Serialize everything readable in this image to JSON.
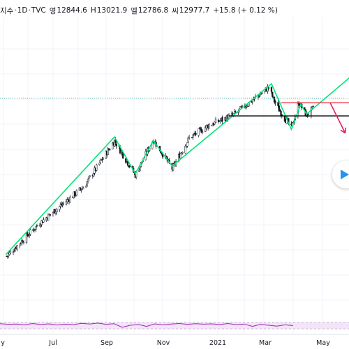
{
  "header": {
    "symbol": "지수",
    "sep1": "·",
    "interval": "1D",
    "sep2": "·",
    "source": "TVC",
    "open_label": "영",
    "open_value": "12844.6",
    "high_label": "H",
    "high_value": "13021.9",
    "low_label": "엘",
    "low_value": "12786.8",
    "close_label": "씨",
    "close_value": "12977.7",
    "change": "+15.8 (+ 0.12 %)"
  },
  "colors": {
    "up_candle": "#131722",
    "down_candle": "#131722",
    "zigzag": "#00e676",
    "resistance": "#f23645",
    "support": "#000000",
    "arrow": "#e91e63",
    "price_line": "#26a69a",
    "rsi_line": "#9c27b0",
    "rsi_band": "#f3e5f5",
    "play": "#2196f3"
  },
  "icons": {
    "play": "play-icon"
  },
  "chart_data": {
    "type": "candlestick",
    "x_tick_labels": [
      "y",
      "Jul",
      "Sep",
      "Nov",
      "2021",
      "Mar",
      "May"
    ],
    "current_price": 12977.7,
    "ylim": [
      7000,
      15200
    ],
    "grid": true,
    "price_path": [
      [
        "2020-05-10",
        7300
      ],
      [
        "2020-06-15",
        8650
      ],
      [
        "2020-08-01",
        10100
      ],
      [
        "2020-09-02",
        11900
      ],
      [
        "2020-09-10",
        11400
      ],
      [
        "2020-09-24",
        10550
      ],
      [
        "2020-10-13",
        11950
      ],
      [
        "2020-11-02",
        10800
      ],
      [
        "2020-11-20",
        12000
      ],
      [
        "2020-12-10",
        12500
      ],
      [
        "2021-01-05",
        12900
      ],
      [
        "2021-02-12",
        14000
      ],
      [
        "2021-02-20",
        13300
      ],
      [
        "2021-03-08",
        12400
      ],
      [
        "2021-03-16",
        13400
      ],
      [
        "2021-03-24",
        12900
      ],
      [
        "2021-04-01",
        13200
      ]
    ],
    "zigzag": [
      [
        "2020-05-10",
        7400
      ],
      [
        "2020-09-02",
        12050
      ],
      [
        "2020-09-24",
        10600
      ],
      [
        "2020-10-13",
        11900
      ],
      [
        "2020-11-02",
        10900
      ],
      [
        "2021-02-15",
        14150
      ],
      [
        "2021-03-08",
        12350
      ],
      [
        "2021-03-18",
        13350
      ],
      [
        "2021-03-24",
        12950
      ],
      [
        "2021-05-31",
        15100
      ]
    ],
    "resistance": {
      "from": "2021-02-25",
      "to": "2021-06-01",
      "price": 13400
    },
    "support": {
      "from": "2021-01-01",
      "to": "2021-06-01",
      "price": 12880
    },
    "projection_arrow": {
      "from": [
        "2021-04-18",
        13400
      ],
      "to": [
        "2021-05-04",
        12200
      ]
    },
    "rsi": {
      "upper": 70,
      "lower": 30,
      "values": [
        62,
        58,
        60,
        55,
        63,
        57,
        61,
        54,
        59,
        56,
        64,
        60,
        66,
        58,
        62,
        40,
        52,
        57,
        45,
        61,
        55,
        60,
        63,
        58,
        62,
        59,
        61,
        57,
        63,
        56,
        60,
        45,
        58,
        52,
        47,
        55,
        50
      ]
    }
  }
}
